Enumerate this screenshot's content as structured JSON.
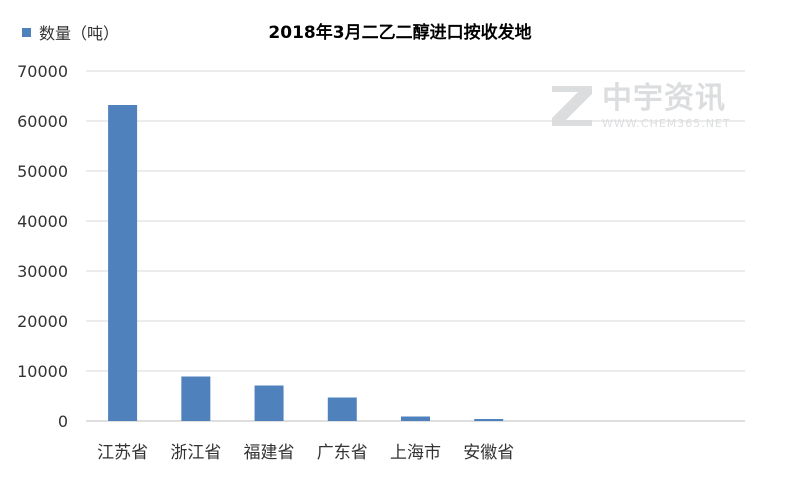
{
  "chart_data": {
    "type": "bar",
    "title": "2018年3月二乙二醇进口按收发地",
    "xlabel": "",
    "ylabel": "",
    "categories": [
      "江苏省",
      "浙江省",
      "福建省",
      "广东省",
      "上海市",
      "安徽省",
      "",
      "",
      ""
    ],
    "series": [
      {
        "name": "数量（吨）",
        "values": [
          63200,
          8900,
          7100,
          4700,
          900,
          400,
          0,
          0,
          0
        ]
      }
    ],
    "ylim": [
      0,
      70000
    ],
    "yticks": [
      "0",
      "10000",
      "20000",
      "30000",
      "40000",
      "50000",
      "60000",
      "70000"
    ],
    "grid": true,
    "legend_position": "top-left"
  },
  "colors": {
    "bar": "#4f81bd",
    "grid": "#d9d9d9",
    "axis": "#bfbfbf"
  },
  "watermark": {
    "name_cn": "中宇资讯",
    "site": "WWW.CHEM365.NET",
    "icon": "z-logo-icon"
  }
}
